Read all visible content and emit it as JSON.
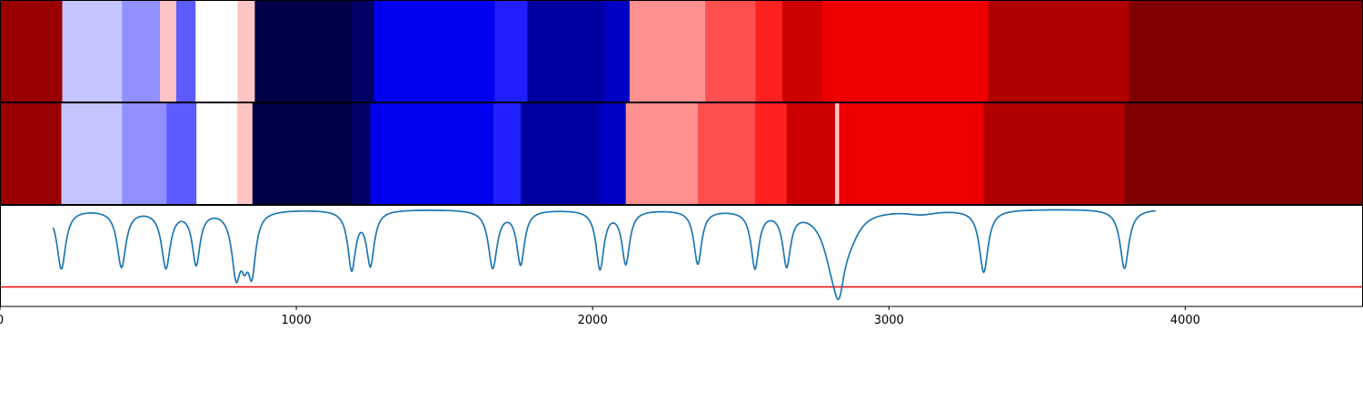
{
  "chart_data": [
    {
      "type": "heatmap",
      "panel": "top-track",
      "colormap": "seismic",
      "xlim": [
        0,
        4600
      ],
      "grid": false,
      "segments": [
        {
          "x0": 0,
          "x1": 210,
          "color": "#990000"
        },
        {
          "x0": 210,
          "x1": 412,
          "color": "#c4c4ff"
        },
        {
          "x0": 412,
          "x1": 540,
          "color": "#9090ff"
        },
        {
          "x0": 540,
          "x1": 595,
          "color": "#ffc4c4"
        },
        {
          "x0": 595,
          "x1": 660,
          "color": "#5c5cff"
        },
        {
          "x0": 660,
          "x1": 802,
          "color": "#ffffff"
        },
        {
          "x0": 802,
          "x1": 860,
          "color": "#ffc4c4"
        },
        {
          "x0": 860,
          "x1": 1185,
          "color": "#000048"
        },
        {
          "x0": 1185,
          "x1": 1262,
          "color": "#000066"
        },
        {
          "x0": 1262,
          "x1": 1670,
          "color": "#0000ee"
        },
        {
          "x0": 1670,
          "x1": 1780,
          "color": "#2020ff"
        },
        {
          "x0": 1780,
          "x1": 2040,
          "color": "#0000a0"
        },
        {
          "x0": 2040,
          "x1": 2125,
          "color": "#0000c4"
        },
        {
          "x0": 2125,
          "x1": 2380,
          "color": "#ff9090"
        },
        {
          "x0": 2380,
          "x1": 2550,
          "color": "#ff5050"
        },
        {
          "x0": 2550,
          "x1": 2640,
          "color": "#ff2020"
        },
        {
          "x0": 2640,
          "x1": 2775,
          "color": "#cc0000"
        },
        {
          "x0": 2775,
          "x1": 3335,
          "color": "#ee0000"
        },
        {
          "x0": 3335,
          "x1": 3810,
          "color": "#b00000"
        },
        {
          "x0": 3810,
          "x1": 4600,
          "color": "#800000"
        }
      ]
    },
    {
      "type": "heatmap",
      "panel": "middle-track",
      "colormap": "seismic",
      "xlim": [
        0,
        4600
      ],
      "grid": false,
      "segments": [
        {
          "x0": 0,
          "x1": 207,
          "color": "#990000"
        },
        {
          "x0": 207,
          "x1": 412,
          "color": "#c4c4ff"
        },
        {
          "x0": 412,
          "x1": 562,
          "color": "#9090ff"
        },
        {
          "x0": 562,
          "x1": 663,
          "color": "#5c5cff"
        },
        {
          "x0": 663,
          "x1": 800,
          "color": "#ffffff"
        },
        {
          "x0": 800,
          "x1": 852,
          "color": "#ffc4c4"
        },
        {
          "x0": 852,
          "x1": 1188,
          "color": "#000048"
        },
        {
          "x0": 1188,
          "x1": 1250,
          "color": "#000066"
        },
        {
          "x0": 1250,
          "x1": 1665,
          "color": "#0000ee"
        },
        {
          "x0": 1665,
          "x1": 1758,
          "color": "#2020ff"
        },
        {
          "x0": 1758,
          "x1": 2025,
          "color": "#0000a0"
        },
        {
          "x0": 2025,
          "x1": 2112,
          "color": "#0000c4"
        },
        {
          "x0": 2112,
          "x1": 2355,
          "color": "#ff9090"
        },
        {
          "x0": 2355,
          "x1": 2548,
          "color": "#ff5050"
        },
        {
          "x0": 2548,
          "x1": 2655,
          "color": "#ff2020"
        },
        {
          "x0": 2655,
          "x1": 2818,
          "color": "#cc0000"
        },
        {
          "x0": 2818,
          "x1": 2832,
          "color": "#ffc4c4"
        },
        {
          "x0": 2832,
          "x1": 3320,
          "color": "#ee0000"
        },
        {
          "x0": 3320,
          "x1": 3795,
          "color": "#b00000"
        },
        {
          "x0": 3795,
          "x1": 4600,
          "color": "#800000"
        }
      ]
    },
    {
      "type": "line",
      "panel": "bottom-plot",
      "xlim": [
        0,
        4600
      ],
      "ylim": [
        -1.25,
        0.05
      ],
      "grid": false,
      "xticks": [
        0,
        1000,
        2000,
        3000,
        4000
      ],
      "xtick_labels": [
        "0",
        "1000",
        "2000",
        "3000",
        "4000"
      ],
      "hline": {
        "y": -1.0,
        "color": "#ee1111"
      },
      "series": [
        {
          "color": "#1f77b4",
          "baseline": 0,
          "dips": [
            {
              "x": 207,
              "depth": 0.76,
              "width": 18
            },
            {
              "x": 410,
              "depth": 0.73,
              "width": 18
            },
            {
              "x": 560,
              "depth": 0.73,
              "width": 18
            },
            {
              "x": 662,
              "depth": 0.68,
              "width": 16
            },
            {
              "x": 797,
              "depth": 0.78,
              "width": 18
            },
            {
              "x": 825,
              "depth": 0.4,
              "width": 14
            },
            {
              "x": 850,
              "depth": 0.73,
              "width": 16
            },
            {
              "x": 1187,
              "depth": 0.75,
              "width": 16
            },
            {
              "x": 1250,
              "depth": 0.69,
              "width": 16
            },
            {
              "x": 1663,
              "depth": 0.74,
              "width": 18
            },
            {
              "x": 1757,
              "depth": 0.69,
              "width": 16
            },
            {
              "x": 2025,
              "depth": 0.75,
              "width": 16
            },
            {
              "x": 2112,
              "depth": 0.68,
              "width": 16
            },
            {
              "x": 2355,
              "depth": 0.69,
              "width": 16
            },
            {
              "x": 2548,
              "depth": 0.73,
              "width": 16
            },
            {
              "x": 2655,
              "depth": 0.68,
              "width": 16
            },
            {
              "x": 2812,
              "depth": 0.6,
              "width": 40
            },
            {
              "x": 2832,
              "depth": 0.55,
              "width": 22
            },
            {
              "x": 2870,
              "depth": 0.2,
              "width": 40
            },
            {
              "x": 3110,
              "depth": 0.05,
              "width": 60
            },
            {
              "x": 3320,
              "depth": 0.8,
              "width": 18
            },
            {
              "x": 3795,
              "depth": 0.76,
              "width": 18
            }
          ]
        }
      ]
    }
  ]
}
